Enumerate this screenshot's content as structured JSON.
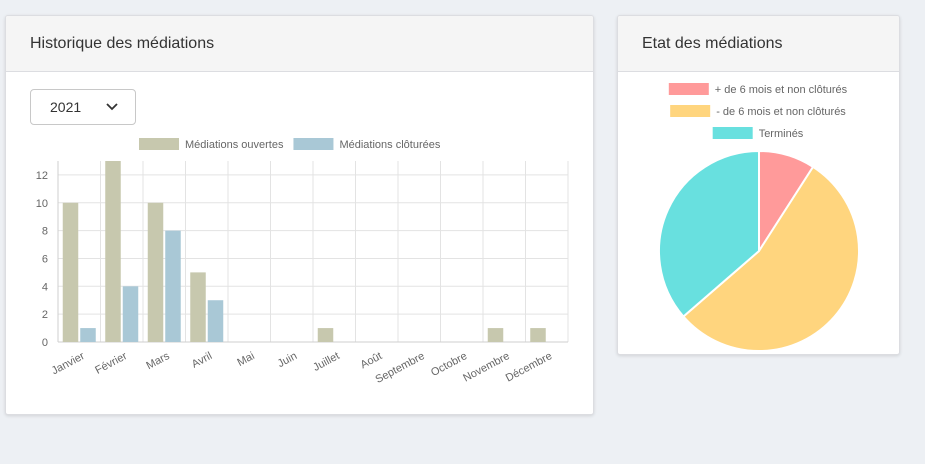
{
  "history": {
    "title": "Historique des médiations",
    "year_select": {
      "value": "2021"
    }
  },
  "state": {
    "title": "Etat des médiations"
  },
  "chart_data": [
    {
      "type": "bar",
      "categories": [
        "Janvier",
        "Février",
        "Mars",
        "Avril",
        "Mai",
        "Juin",
        "Juillet",
        "Août",
        "Septembre",
        "Octobre",
        "Novembre",
        "Décembre"
      ],
      "series": [
        {
          "name": "Médiations ouvertes",
          "values": [
            10,
            13,
            10,
            5,
            0,
            0,
            1,
            0,
            0,
            0,
            1,
            1
          ],
          "color": "#c7c8ae"
        },
        {
          "name": "Médiations clôturées",
          "values": [
            1,
            4,
            8,
            3,
            0,
            0,
            0,
            0,
            0,
            0,
            0,
            0
          ],
          "color": "#a9c8d6"
        }
      ],
      "yticks": [
        0,
        2,
        4,
        6,
        8,
        10,
        12
      ],
      "ylim": [
        0,
        13
      ],
      "grid": true,
      "legend": "top"
    },
    {
      "type": "pie",
      "labels": [
        "+ de 6 mois et non clôturés",
        "- de 6 mois et non clôturés",
        "Terminés"
      ],
      "values": [
        1,
        6,
        4
      ],
      "colors": [
        "#ff9a9a",
        "#ffd57e",
        "#68e0df"
      ],
      "legend": "top"
    }
  ]
}
